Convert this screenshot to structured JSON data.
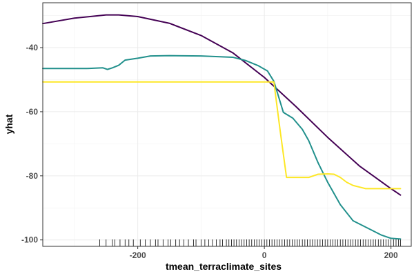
{
  "chart_data": {
    "type": "line",
    "xlabel": "tmean_terraclimate_sites",
    "ylabel": "yhat",
    "xlim": [
      -350,
      232
    ],
    "ylim": [
      -102,
      -26
    ],
    "x_ticks": [
      -200,
      0,
      200
    ],
    "y_ticks": [
      -40,
      -60,
      -80,
      -100
    ],
    "x_tick_labels": [
      "-200",
      "0",
      "200"
    ],
    "y_tick_labels": [
      "-40",
      "-60",
      "-80",
      "-100"
    ],
    "grid": true,
    "legend": "none",
    "series": [
      {
        "color": "#440154",
        "x": [
          -350,
          -300,
          -250,
          -230,
          -200,
          -150,
          -100,
          -50,
          0,
          50,
          100,
          150,
          200,
          215
        ],
        "y": [
          -32.5,
          -30.8,
          -29.8,
          -29.8,
          -30.3,
          -32.4,
          -36.2,
          -41.6,
          -49.3,
          -58.4,
          -68.0,
          -76.9,
          -84.0,
          -86.0
        ]
      },
      {
        "color": "#21908C",
        "x": [
          -350,
          -280,
          -255,
          -248,
          -240,
          -230,
          -220,
          -200,
          -180,
          -150,
          -100,
          -50,
          -30,
          -10,
          5,
          15,
          22,
          30,
          45,
          60,
          70,
          85,
          100,
          120,
          140,
          170,
          185,
          200,
          215
        ],
        "y": [
          -46.5,
          -46.5,
          -46.3,
          -46.8,
          -46.3,
          -45.5,
          -43.9,
          -43.3,
          -42.6,
          -42.5,
          -42.6,
          -43.0,
          -44.0,
          -45.6,
          -47.3,
          -50.5,
          -55.0,
          -60.2,
          -62.0,
          -65.5,
          -69.0,
          -76.0,
          -82.0,
          -89.0,
          -94.0,
          -97.0,
          -98.5,
          -99.5,
          -99.7
        ]
      },
      {
        "color": "#FDE725",
        "x": [
          -350,
          -200,
          -100,
          0,
          15,
          25,
          35,
          50,
          70,
          85,
          100,
          110,
          120,
          130,
          140,
          150,
          160,
          180,
          215
        ],
        "y": [
          -50.7,
          -50.7,
          -50.7,
          -50.7,
          -50.7,
          -66.0,
          -80.5,
          -80.5,
          -80.5,
          -79.5,
          -79.4,
          -79.5,
          -80.5,
          -82.0,
          -83.0,
          -83.5,
          -84.0,
          -84.0,
          -84.0
        ]
      }
    ],
    "rug": [
      -350,
      -260,
      -250,
      -240,
      -236,
      -228,
      -220,
      -214,
      -207,
      -196,
      -188,
      -180,
      -172,
      -168,
      -160,
      -152,
      -148,
      -140,
      -134,
      -127,
      -120,
      -112,
      -108,
      -100,
      -94,
      -88,
      -82,
      -76,
      -70,
      -66,
      -60,
      -56,
      -52,
      -48,
      -44,
      -40,
      -36,
      -32,
      -28,
      -24,
      -20,
      -16,
      -12,
      -8,
      -4,
      0,
      4,
      8,
      12,
      16,
      20,
      24,
      28,
      32,
      36,
      40,
      44,
      48,
      52,
      56,
      60,
      64,
      68,
      72,
      76,
      80,
      84,
      88,
      92,
      96,
      100,
      104,
      108,
      112,
      116,
      120,
      124,
      128,
      132,
      136,
      140,
      144,
      148,
      152,
      156,
      160,
      164,
      168,
      172,
      176,
      180,
      184,
      188,
      192,
      196,
      200,
      204,
      208,
      212,
      215
    ]
  }
}
